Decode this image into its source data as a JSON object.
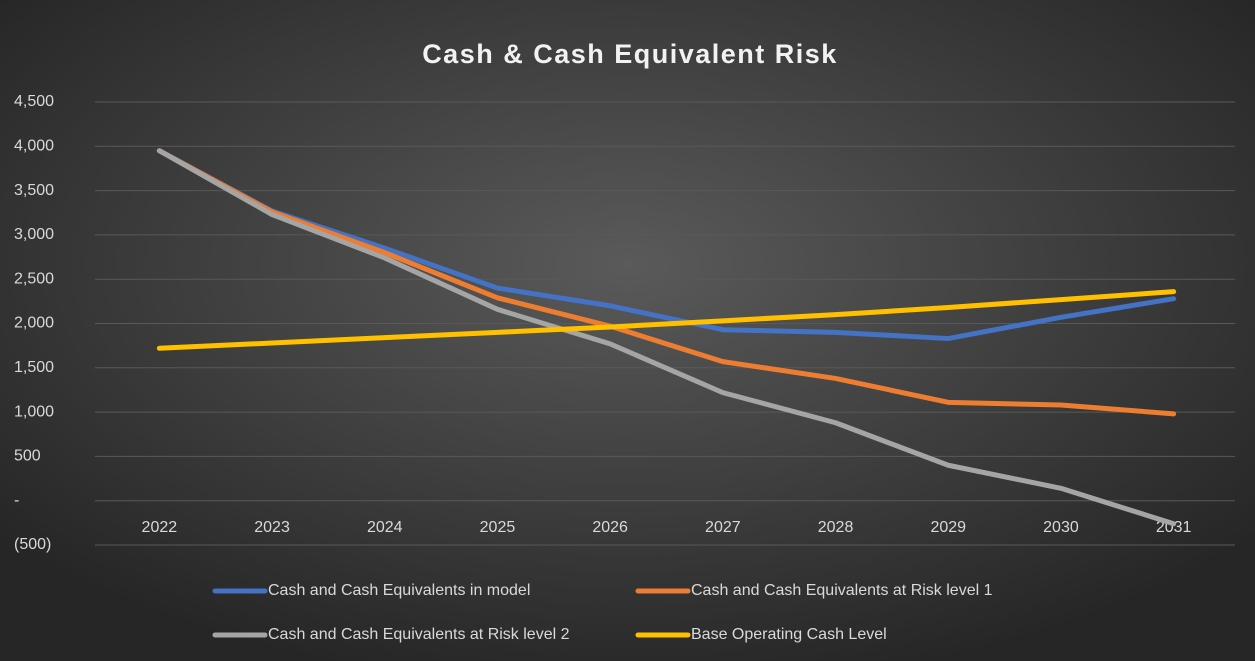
{
  "chart_data": {
    "type": "line",
    "title": "Cash & Cash Equivalent Risk",
    "categories": [
      "2022",
      "2023",
      "2024",
      "2025",
      "2026",
      "2027",
      "2028",
      "2029",
      "2030",
      "2031"
    ],
    "series": [
      {
        "name": "Cash and Cash Equivalents in model",
        "color": "#4472c4",
        "values": [
          3950,
          3270,
          2850,
          2400,
          2200,
          1930,
          1900,
          1830,
          2070,
          2280
        ]
      },
      {
        "name": "Cash and Cash Equivalents at Risk level 1",
        "color": "#ed7d31",
        "values": [
          3950,
          3260,
          2800,
          2290,
          1970,
          1570,
          1380,
          1110,
          1080,
          980
        ]
      },
      {
        "name": "Cash and Cash Equivalents at Risk level 2",
        "color": "#a5a5a5",
        "values": [
          3950,
          3230,
          2740,
          2160,
          1770,
          1220,
          880,
          400,
          140,
          -260
        ]
      },
      {
        "name": "Base Operating Cash Level",
        "color": "#ffc000",
        "values": [
          1720,
          1780,
          1840,
          1900,
          1960,
          2030,
          2100,
          2180,
          2270,
          2360
        ]
      }
    ],
    "ylim": [
      -500,
      4500
    ],
    "yticks": [
      {
        "value": -500,
        "label": "(500)"
      },
      {
        "value": 0,
        "label": "-"
      },
      500,
      {
        "value": 1000,
        "label": "1,000"
      },
      {
        "value": 1500,
        "label": "1,500"
      },
      {
        "value": 2000,
        "label": "2,000"
      },
      {
        "value": 2500,
        "label": "2,500"
      },
      {
        "value": 3000,
        "label": "3,000"
      },
      {
        "value": 3500,
        "label": "3,500"
      },
      {
        "value": 4000,
        "label": "4,000"
      },
      {
        "value": 4500,
        "label": "4,500"
      }
    ],
    "grid": true,
    "legend": "bottom"
  }
}
